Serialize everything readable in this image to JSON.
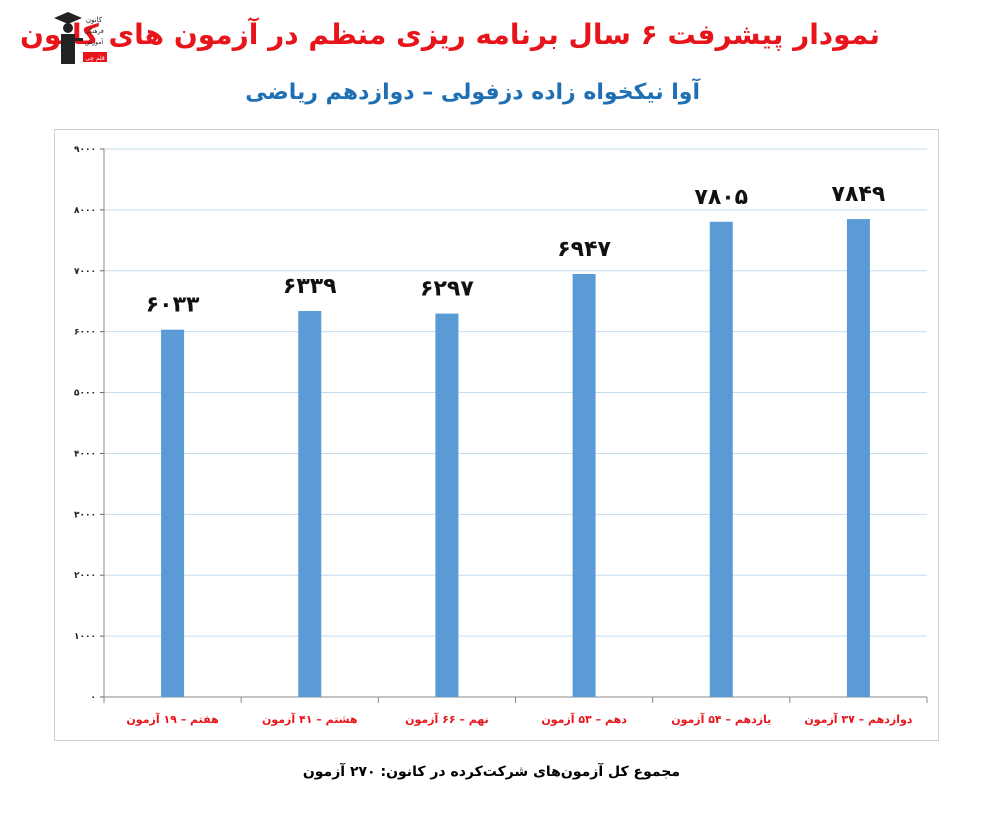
{
  "header": {
    "title": "نمودار پیشرفت ۶ سال برنامه ریزی منظم در آزمون های کانون",
    "subtitle": "آوا نیکخواه زاده دزفولی – دوازدهم ریاضی",
    "logo_lines": [
      "کانون",
      "فرهنگی",
      "آموزش",
      "قلم چی"
    ]
  },
  "footer": {
    "text": "مجموع کل آزمون‌های شرکت‌کرده در کانون: ۲۷۰ آزمون"
  },
  "colors": {
    "title": "#e8141b",
    "subtitle": "#1f6fb5",
    "bar": "#5b9bd5",
    "category_label": "#e8141b",
    "grid": "#c5dced"
  },
  "chart_data": {
    "type": "bar",
    "categories": [
      "هفتم – ۱۹ آزمون",
      "هشتم – ۴۱ آزمون",
      "نهم – ۶۶ آزمون",
      "دهم – ۵۳ آزمون",
      "یازدهم – ۵۴ آزمون",
      "دوازدهم – ۳۷ آزمون"
    ],
    "values": [
      6033,
      6339,
      6297,
      6947,
      7805,
      7849
    ],
    "value_labels": [
      "۶۰۳۳",
      "۶۳۳۹",
      "۶۲۹۷",
      "۶۹۴۷",
      "۷۸۰۵",
      "۷۸۴۹"
    ],
    "y_ticks": [
      0,
      1000,
      2000,
      3000,
      4000,
      5000,
      6000,
      7000,
      8000,
      9000
    ],
    "y_tick_labels": [
      "۰",
      "۱۰۰۰",
      "۲۰۰۰",
      "۳۰۰۰",
      "۴۰۰۰",
      "۵۰۰۰",
      "۶۰۰۰",
      "۷۰۰۰",
      "۸۰۰۰",
      "۹۰۰۰"
    ],
    "ylim": [
      0,
      9000
    ],
    "grid": true,
    "legend": "none"
  }
}
